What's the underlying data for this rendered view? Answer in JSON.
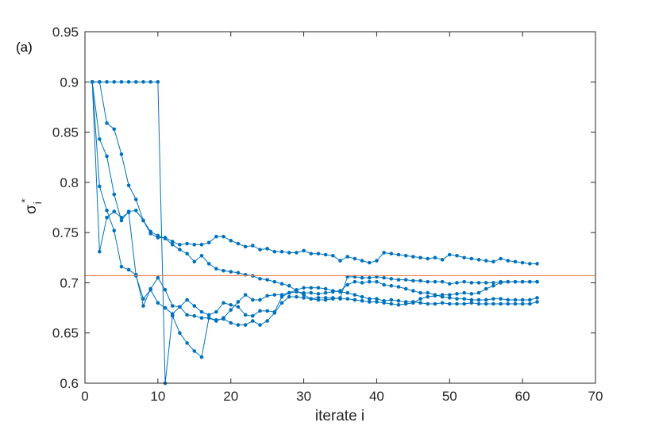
{
  "panel_label": "(a)",
  "chart_data": {
    "type": "line",
    "title": "",
    "xlabel": "iterate i",
    "ylabel": "σ",
    "ylabel_superscript": "*",
    "ylabel_subscript": "i",
    "xlim": [
      0,
      70
    ],
    "ylim": [
      0.6,
      0.95
    ],
    "xticks": [
      "0",
      "10",
      "20",
      "30",
      "40",
      "50",
      "60",
      "70"
    ],
    "yticks": [
      "0.6",
      "0.65",
      "0.7",
      "0.75",
      "0.8",
      "0.85",
      "0.9",
      "0.95"
    ],
    "grid": false,
    "legend": false,
    "series_color": "#0072BD",
    "reference_color": "#F08050",
    "reference_line": {
      "y": 0.7071
    },
    "x": [
      1,
      2,
      3,
      4,
      5,
      6,
      7,
      8,
      9,
      10,
      11,
      12,
      13,
      14,
      15,
      16,
      17,
      18,
      19,
      20,
      21,
      22,
      23,
      24,
      25,
      26,
      27,
      28,
      29,
      30,
      31,
      32,
      33,
      34,
      35,
      36,
      37,
      38,
      39,
      40,
      41,
      42,
      43,
      44,
      45,
      46,
      47,
      48,
      49,
      50,
      51,
      52,
      53,
      54,
      55,
      56,
      57,
      58,
      59,
      60,
      61,
      62
    ],
    "series": [
      {
        "values": [
          0.9,
          0.9,
          0.9,
          0.9,
          0.9,
          0.9,
          0.9,
          0.9,
          0.9,
          0.9,
          0.6,
          0.667,
          0.65,
          0.64,
          0.632,
          0.626,
          0.665,
          0.663,
          0.664,
          0.66,
          0.658,
          0.658,
          0.662,
          0.658,
          0.662,
          0.67,
          0.68,
          0.686,
          0.686,
          0.685,
          0.684,
          0.685,
          0.685,
          0.685,
          0.684,
          0.684,
          0.683,
          0.682,
          0.681,
          0.681,
          0.68,
          0.679,
          0.678,
          0.679,
          0.68,
          0.684,
          0.686,
          0.687,
          0.688,
          0.688,
          0.689,
          0.69,
          0.689,
          0.69,
          0.694,
          0.697,
          0.7,
          0.701,
          0.701,
          0.701,
          0.701,
          0.701
        ]
      },
      {
        "values": [
          0.9,
          0.9,
          0.859,
          0.853,
          0.828,
          0.797,
          0.783,
          0.762,
          0.751,
          0.747,
          0.744,
          0.738,
          0.733,
          0.729,
          0.721,
          0.727,
          0.719,
          0.714,
          0.712,
          0.711,
          0.71,
          0.708,
          0.707,
          0.704,
          0.703,
          0.701,
          0.699,
          0.697,
          0.692,
          0.688,
          0.684,
          0.683,
          0.683,
          0.684,
          0.685,
          0.706,
          0.706,
          0.705,
          0.705,
          0.706,
          0.705,
          0.704,
          0.703,
          0.703,
          0.702,
          0.702,
          0.701,
          0.701,
          0.701,
          0.699,
          0.7,
          0.701,
          0.7,
          0.7,
          0.7,
          0.7,
          0.701,
          0.701,
          0.701,
          0.701,
          0.701,
          0.701
        ]
      },
      {
        "values": [
          0.9,
          0.843,
          0.826,
          0.788,
          0.762,
          0.771,
          0.772,
          0.762,
          0.749,
          0.745,
          0.745,
          0.741,
          0.738,
          0.739,
          0.738,
          0.738,
          0.74,
          0.746,
          0.746,
          0.742,
          0.739,
          0.736,
          0.737,
          0.733,
          0.734,
          0.731,
          0.731,
          0.73,
          0.73,
          0.732,
          0.729,
          0.729,
          0.728,
          0.727,
          0.722,
          0.726,
          0.724,
          0.722,
          0.72,
          0.722,
          0.73,
          0.729,
          0.728,
          0.727,
          0.726,
          0.725,
          0.724,
          0.725,
          0.723,
          0.728,
          0.727,
          0.725,
          0.724,
          0.723,
          0.722,
          0.721,
          0.724,
          0.722,
          0.721,
          0.72,
          0.719,
          0.719
        ]
      },
      {
        "values": [
          0.9,
          0.731,
          0.765,
          0.771,
          0.765,
          0.77,
          0.707,
          0.684,
          0.693,
          0.68,
          0.675,
          0.669,
          0.676,
          0.683,
          0.677,
          0.671,
          0.668,
          0.671,
          0.68,
          0.678,
          0.676,
          0.668,
          0.667,
          0.672,
          0.672,
          0.671,
          0.686,
          0.69,
          0.693,
          0.695,
          0.695,
          0.695,
          0.694,
          0.692,
          0.691,
          0.69,
          0.688,
          0.686,
          0.684,
          0.684,
          0.682,
          0.683,
          0.682,
          0.681,
          0.681,
          0.68,
          0.679,
          0.679,
          0.68,
          0.679,
          0.679,
          0.679,
          0.68,
          0.679,
          0.679,
          0.679,
          0.679,
          0.679,
          0.679,
          0.679,
          0.679,
          0.681
        ]
      },
      {
        "values": [
          0.9,
          0.796,
          0.772,
          0.752,
          0.716,
          0.713,
          0.708,
          0.677,
          0.694,
          0.705,
          0.693,
          0.677,
          0.676,
          0.668,
          0.667,
          0.665,
          0.665,
          0.662,
          0.665,
          0.673,
          0.681,
          0.688,
          0.683,
          0.683,
          0.687,
          0.688,
          0.688,
          0.69,
          0.691,
          0.69,
          0.69,
          0.689,
          0.69,
          0.691,
          0.692,
          0.698,
          0.701,
          0.7,
          0.701,
          0.701,
          0.698,
          0.697,
          0.696,
          0.694,
          0.692,
          0.69,
          0.69,
          0.688,
          0.686,
          0.685,
          0.684,
          0.684,
          0.683,
          0.683,
          0.683,
          0.684,
          0.684,
          0.683,
          0.683,
          0.683,
          0.683,
          0.685
        ]
      }
    ]
  }
}
